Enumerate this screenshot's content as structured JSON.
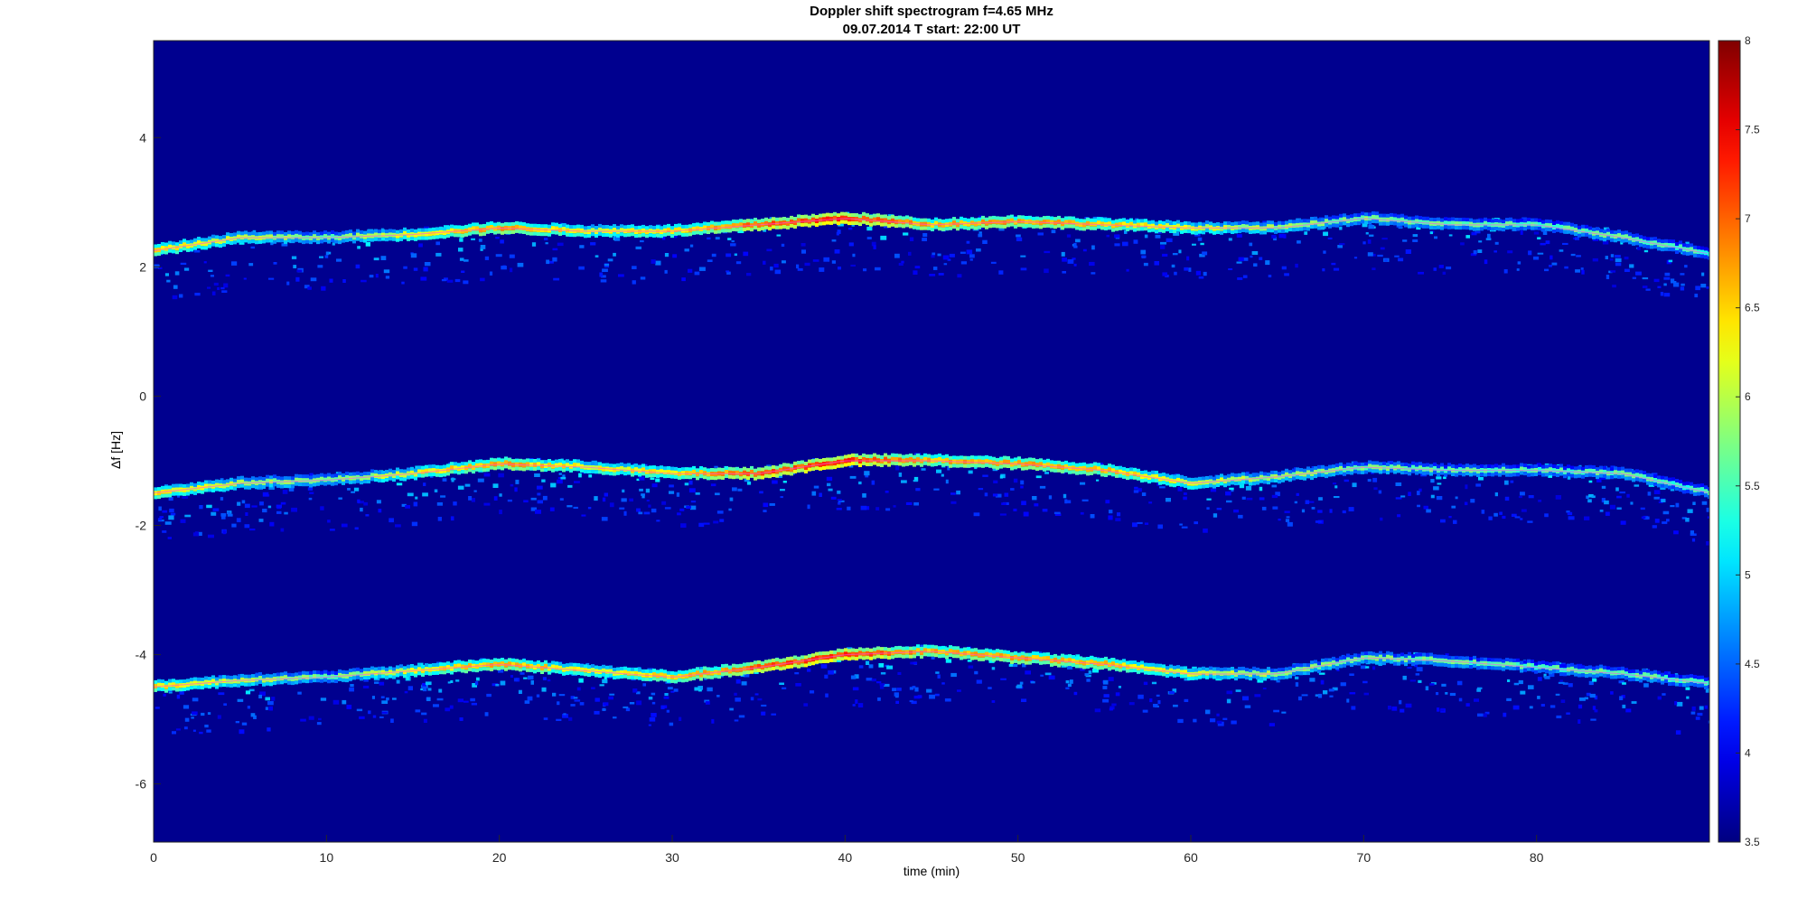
{
  "chart_data": {
    "type": "heatmap",
    "title": "Doppler shift spectrogram f=4.65 MHz",
    "subtitle": "09.07.2014   T start: 22:00 UT",
    "xlabel": "time (min)",
    "ylabel": "Δf [Hz]",
    "xlim": [
      0,
      90
    ],
    "ylim": [
      -6.9,
      5.5
    ],
    "xticks": [
      0,
      10,
      20,
      30,
      40,
      50,
      60,
      70,
      80
    ],
    "yticks": [
      -6,
      -4,
      -2,
      0,
      2,
      4
    ],
    "colorbar": {
      "colormap": "jet",
      "range": [
        3.5,
        8
      ],
      "ticks": [
        3.5,
        4,
        4.5,
        5,
        5.5,
        6,
        6.5,
        7,
        7.5,
        8
      ]
    },
    "background_color": "#00008f",
    "series": [
      {
        "x": [
          0,
          5,
          10,
          15,
          20,
          25,
          30,
          35,
          40,
          45,
          50,
          55,
          60,
          65,
          70,
          75,
          80,
          85,
          90
        ],
        "y": [
          2.25,
          2.45,
          2.45,
          2.5,
          2.6,
          2.55,
          2.55,
          2.65,
          2.75,
          2.65,
          2.7,
          2.65,
          2.6,
          2.6,
          2.75,
          2.65,
          2.65,
          2.45,
          2.2
        ]
      },
      {
        "x": [
          0,
          5,
          10,
          15,
          20,
          25,
          30,
          35,
          40,
          45,
          50,
          55,
          60,
          65,
          70,
          75,
          80,
          85,
          90
        ],
        "y": [
          -1.5,
          -1.35,
          -1.3,
          -1.2,
          -1.05,
          -1.1,
          -1.2,
          -1.2,
          -1.0,
          -1.0,
          -1.05,
          -1.15,
          -1.35,
          -1.25,
          -1.1,
          -1.15,
          -1.15,
          -1.2,
          -1.5
        ]
      },
      {
        "x": [
          0,
          5,
          10,
          15,
          20,
          25,
          30,
          35,
          40,
          45,
          50,
          55,
          60,
          65,
          70,
          75,
          80,
          85,
          90
        ],
        "y": [
          -4.5,
          -4.4,
          -4.35,
          -4.25,
          -4.15,
          -4.25,
          -4.35,
          -4.2,
          -4.0,
          -3.95,
          -4.05,
          -4.15,
          -4.3,
          -4.3,
          -4.05,
          -4.1,
          -4.2,
          -4.3,
          -4.45
        ]
      }
    ],
    "ridge_intensity": [
      6.4,
      6.0,
      5.6,
      6.2,
      6.7,
      6.2,
      6.4,
      7.0,
      7.2,
      6.6,
      6.7,
      6.5,
      6.1,
      5.8,
      5.7,
      5.6,
      5.5,
      5.6,
      5.4
    ]
  }
}
